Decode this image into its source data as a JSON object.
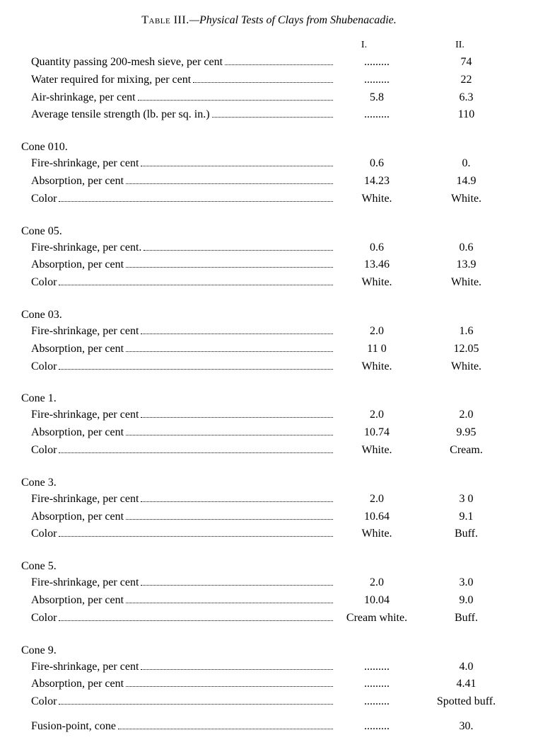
{
  "title_prefix": "Table III.",
  "title_rest": "—Physical Tests of Clays from Shubenacadie.",
  "col_headers": {
    "c1": "I.",
    "c2": "II."
  },
  "blank_dots": ".........",
  "intro_rows": [
    {
      "label": "Quantity passing 200-mesh sieve, per cent",
      "c1": ".........",
      "c2": "74"
    },
    {
      "label": "Water required for mixing, per cent",
      "c1": ".........",
      "c2": "22"
    },
    {
      "label": "Air-shrinkage, per cent",
      "c1": "5.8",
      "c2": "6.3"
    },
    {
      "label": "Average tensile strength (lb. per sq. in.)",
      "c1": ".........",
      "c2": "110"
    }
  ],
  "sections": [
    {
      "head": "Cone 010.",
      "rows": [
        {
          "label": "Fire-shrinkage, per cent",
          "c1": "0.6",
          "c2": "0."
        },
        {
          "label": "Absorption, per cent",
          "c1": "14.23",
          "c2": "14.9"
        },
        {
          "label": "Color",
          "c1": "White.",
          "c2": "White."
        }
      ]
    },
    {
      "head": "Cone 05.",
      "rows": [
        {
          "label": "Fire-shrinkage, per cent.",
          "c1": "0.6",
          "c2": "0.6"
        },
        {
          "label": "Absorption, per cent",
          "c1": "13.46",
          "c2": "13.9"
        },
        {
          "label": "Color",
          "c1": "White.",
          "c2": "White."
        }
      ]
    },
    {
      "head": "Cone 03.",
      "rows": [
        {
          "label": "Fire-shrinkage, per cent",
          "c1": "2.0",
          "c2": "1.6"
        },
        {
          "label": "Absorption, per cent",
          "c1": "11 0",
          "c2": "12.05"
        },
        {
          "label": "Color",
          "c1": "White.",
          "c2": "White."
        }
      ]
    },
    {
      "head": "Cone 1.",
      "rows": [
        {
          "label": "Fire-shrinkage, per cent",
          "c1": "2.0",
          "c2": "2.0"
        },
        {
          "label": "Absorption, per cent",
          "c1": "10.74",
          "c2": "9.95"
        },
        {
          "label": "Color",
          "c1": "White.",
          "c2": "Cream."
        }
      ]
    },
    {
      "head": "Cone 3.",
      "rows": [
        {
          "label": "Fire-shrinkage, per cent",
          "c1": "2.0",
          "c2": "3 0"
        },
        {
          "label": "Absorption, per cent",
          "c1": "10.64",
          "c2": "9.1"
        },
        {
          "label": "Color",
          "c1": "White.",
          "c2": "Buff."
        }
      ]
    },
    {
      "head": "Cone 5.",
      "rows": [
        {
          "label": "Fire-shrinkage, per cent",
          "c1": "2.0",
          "c2": "3.0"
        },
        {
          "label": "Absorption, per cent",
          "c1": "10.04",
          "c2": "9.0"
        },
        {
          "label": "Color",
          "c1": "Cream white.",
          "c2": "Buff."
        }
      ]
    },
    {
      "head": "Cone 9.",
      "rows": [
        {
          "label": "Fire-shrinkage, per cent",
          "c1": ".........",
          "c2": "4.0"
        },
        {
          "label": "Absorption, per cent",
          "c1": ".........",
          "c2": "4.41"
        },
        {
          "label": "Color",
          "c1": ".........",
          "c2": "Spotted buff."
        }
      ]
    }
  ],
  "footer_row": {
    "label": "Fusion-point, cone",
    "c1": ".........",
    "c2": "30."
  }
}
